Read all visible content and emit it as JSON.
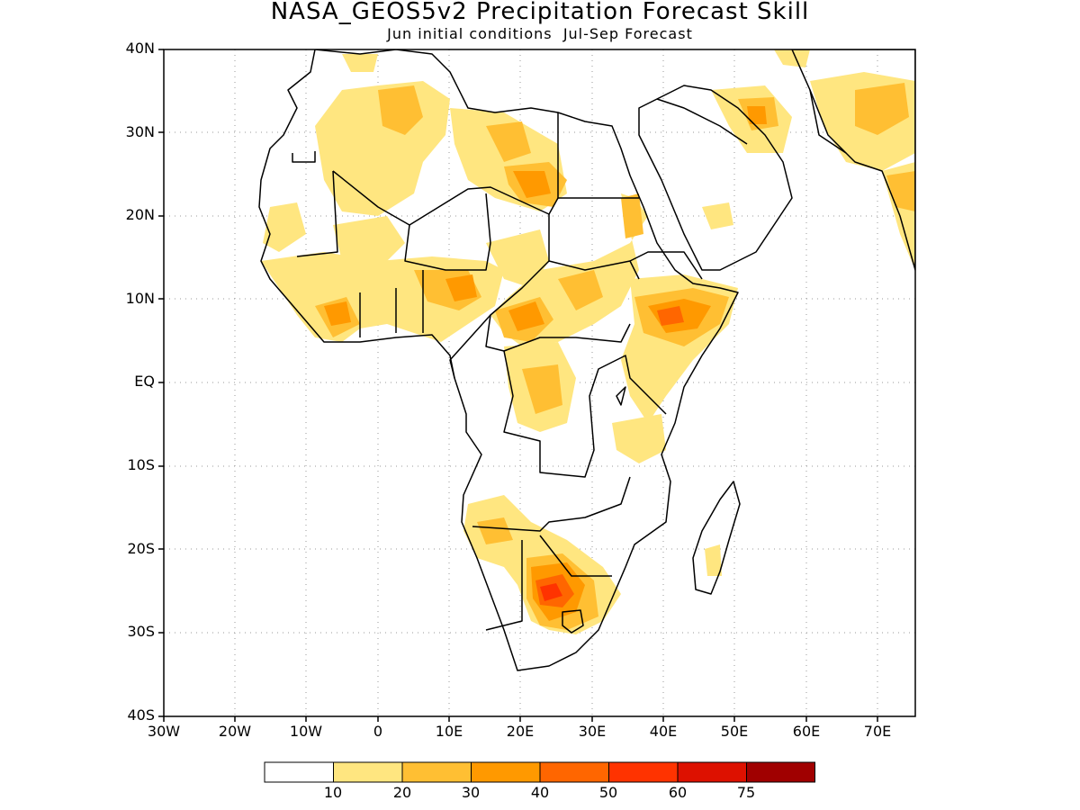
{
  "map": {
    "title": "NASA_GEOS5v2 Precipitation Forecast Skill",
    "subtitle": "Jun initial conditions  Jul-Sep Forecast",
    "lat_labels": [
      "40N",
      "30N",
      "20N",
      "10N",
      "EQ",
      "10S",
      "20S",
      "30S",
      "40S"
    ],
    "lon_labels": [
      "30W",
      "20W",
      "10W",
      "0",
      "10E",
      "20E",
      "30E",
      "40E",
      "50E",
      "60E",
      "70E"
    ]
  },
  "colorbar": {
    "levels": [
      "10",
      "20",
      "30",
      "40",
      "50",
      "60",
      "75"
    ],
    "colors": [
      "#ffffff",
      "#ffe680",
      "#ffbf33",
      "#ff9900",
      "#ff6600",
      "#ff3300",
      "#dd1100",
      "#a00000"
    ]
  }
}
